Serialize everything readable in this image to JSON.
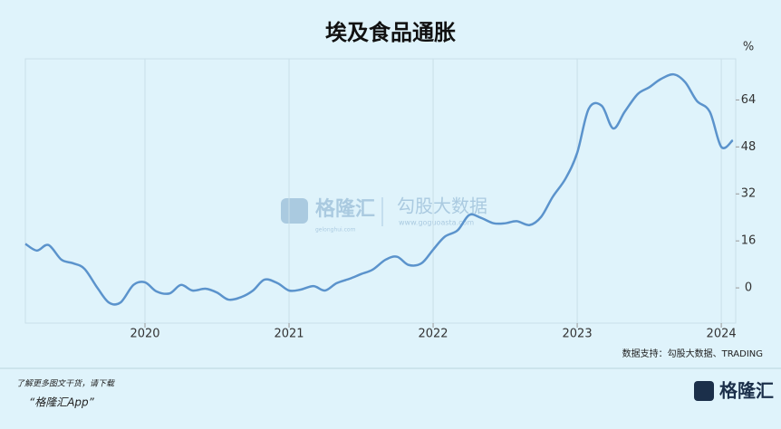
{
  "chart_data": {
    "type": "line",
    "title": "埃及食品通胀",
    "y_unit": "%",
    "x": [
      2019.17,
      2019.25,
      2019.33,
      2019.42,
      2019.5,
      2019.58,
      2019.67,
      2019.75,
      2019.83,
      2019.92,
      2020.0,
      2020.08,
      2020.17,
      2020.25,
      2020.33,
      2020.42,
      2020.5,
      2020.58,
      2020.67,
      2020.75,
      2020.83,
      2020.92,
      2021.0,
      2021.08,
      2021.17,
      2021.25,
      2021.33,
      2021.42,
      2021.5,
      2021.58,
      2021.67,
      2021.75,
      2021.83,
      2021.92,
      2022.0,
      2022.08,
      2022.17,
      2022.25,
      2022.33,
      2022.42,
      2022.5,
      2022.58,
      2022.67,
      2022.75,
      2022.83,
      2022.92,
      2023.0,
      2023.08,
      2023.17,
      2023.25,
      2023.33,
      2023.42,
      2023.5,
      2023.58,
      2023.67,
      2023.75,
      2023.83,
      2023.92,
      2024.0,
      2024.08
    ],
    "series": [
      {
        "name": "埃及食品通胀",
        "color": "#5b93cc",
        "values": [
          15,
          12.7,
          14.6,
          9.6,
          8.4,
          6.5,
          0,
          -5,
          -5,
          1,
          1.9,
          -1.2,
          -1.9,
          1,
          -0.9,
          -0.3,
          -1.6,
          -4,
          -3.1,
          -0.9,
          2.8,
          1.6,
          -0.9,
          -0.6,
          0.6,
          -0.9,
          1.6,
          3.1,
          4.7,
          6.2,
          9.6,
          10.6,
          7.8,
          8.4,
          13,
          17.4,
          19.6,
          24.8,
          23.9,
          22,
          22,
          22.7,
          21.4,
          24.2,
          31,
          37.3,
          46,
          61,
          62,
          54.3,
          60,
          66,
          68.3,
          71.1,
          72.7,
          70,
          63.7,
          60,
          48,
          50.3
        ]
      }
    ],
    "xlim": [
      2019.17,
      2024.1
    ],
    "xticks": [
      2020,
      2021,
      2022,
      2023,
      2024
    ],
    "ylim": [
      -12,
      78
    ],
    "yticks": [
      0,
      16,
      32,
      48,
      64
    ],
    "grid": "x",
    "source": "数据支持：勾股大数据、TRADING"
  },
  "watermark": {
    "brand": "格隆汇",
    "brand_url": "gelonghui.com",
    "partner": "勾股大数据",
    "partner_url": "www.goguoasta.com"
  },
  "footer": {
    "line1": "了解更多图文干货，请下载",
    "line2": "“格隆汇App”",
    "logo": "格隆汇"
  }
}
